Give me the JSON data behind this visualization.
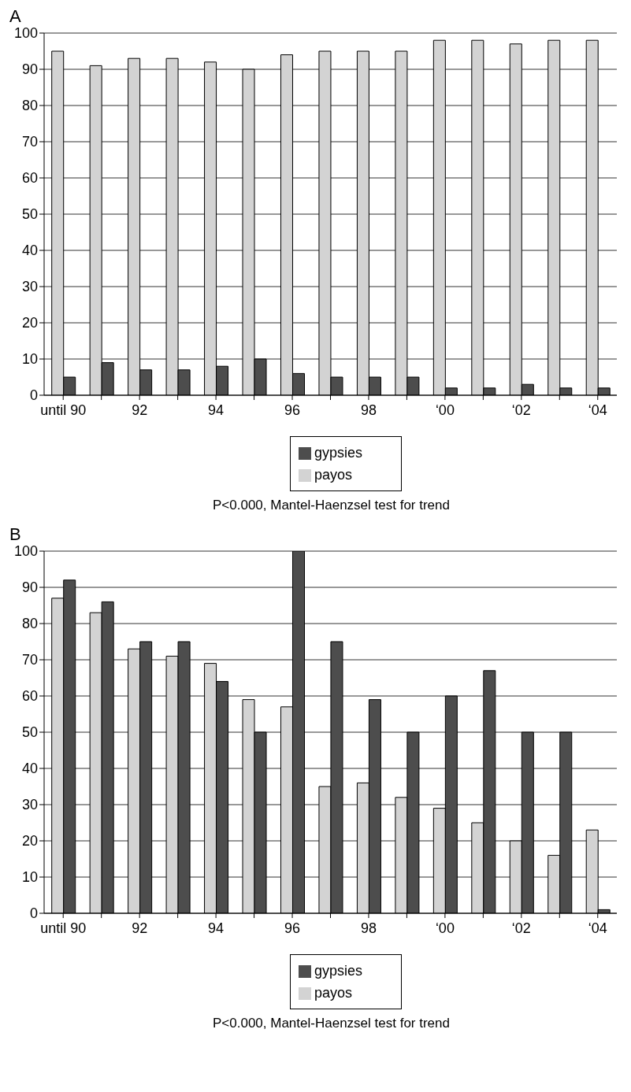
{
  "chart_data": [
    {
      "type": "bar",
      "title": "A",
      "categories": [
        "until 90",
        null,
        "92",
        null,
        "94",
        null,
        "96",
        null,
        "98",
        null,
        "‘00",
        null,
        "‘02",
        null,
        "‘04"
      ],
      "series": [
        {
          "name": "payos",
          "color": "#d3d3d3",
          "values": [
            95,
            91,
            93,
            93,
            92,
            90,
            94,
            95,
            95,
            95,
            98,
            98,
            97,
            98,
            98
          ]
        },
        {
          "name": "gypsies",
          "color": "#4d4d4d",
          "values": [
            5,
            9,
            7,
            7,
            8,
            10,
            6,
            5,
            5,
            5,
            2,
            2,
            3,
            2,
            2
          ]
        }
      ],
      "ylim": [
        0,
        100
      ],
      "yticks": [
        0,
        10,
        20,
        30,
        40,
        50,
        60,
        70,
        80,
        90,
        100
      ],
      "grid": "y",
      "legend": "bottom",
      "annotations": [
        "P<0.000, Mantel-Haenzsel test for trend"
      ]
    },
    {
      "type": "bar",
      "title": "B",
      "categories": [
        "until 90",
        null,
        "92",
        null,
        "94",
        null,
        "96",
        null,
        "98",
        null,
        "‘00",
        null,
        "‘02",
        null,
        "‘04"
      ],
      "series": [
        {
          "name": "payos",
          "color": "#d3d3d3",
          "values": [
            87,
            83,
            73,
            71,
            69,
            59,
            57,
            35,
            36,
            32,
            29,
            25,
            20,
            16,
            23
          ]
        },
        {
          "name": "gypsies",
          "color": "#4d4d4d",
          "values": [
            92,
            86,
            75,
            75,
            64,
            50,
            100,
            75,
            59,
            50,
            60,
            67,
            50,
            50,
            1
          ]
        }
      ],
      "ylim": [
        0,
        100
      ],
      "yticks": [
        0,
        10,
        20,
        30,
        40,
        50,
        60,
        70,
        80,
        90,
        100
      ],
      "grid": "y",
      "legend": "bottom",
      "annotations": [
        "P<0.000, Mantel-Haenzsel test for trend"
      ]
    }
  ]
}
